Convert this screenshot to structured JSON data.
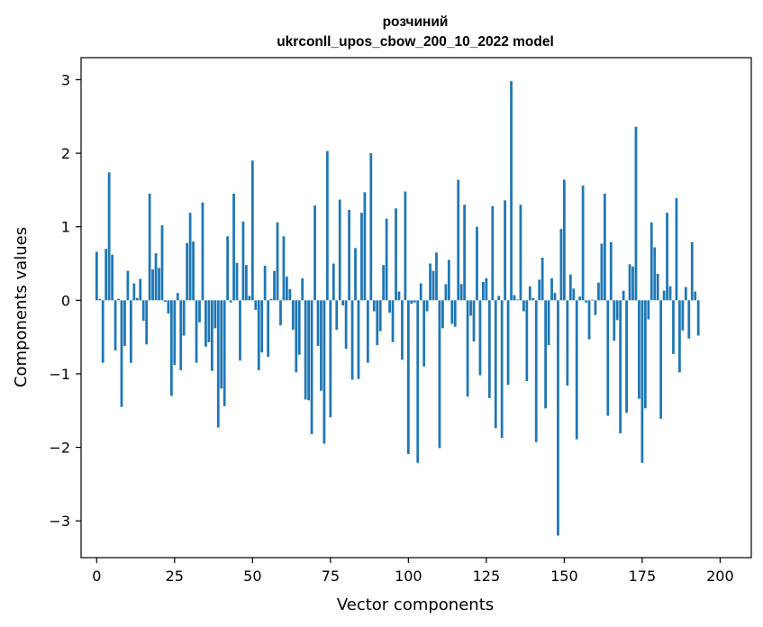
{
  "chart_data": {
    "type": "bar",
    "title_lines": [
      "розчиний",
      "ukrconll_upos_cbow_200_10_2022 model"
    ],
    "xlabel": "Vector components",
    "ylabel": "Components values",
    "xlim": [
      -5,
      210
    ],
    "ylim": [
      -3.5,
      3.3
    ],
    "xticks": [
      0,
      25,
      50,
      75,
      100,
      125,
      150,
      175,
      200
    ],
    "yticks": [
      3,
      2,
      1,
      0,
      -1,
      -2,
      -3
    ],
    "ytick_labels": [
      "3",
      "2",
      "1",
      "0",
      "−1",
      "−2",
      "−3"
    ],
    "bar_color": "#1f77b4",
    "values": [
      0.66,
      0.02,
      -0.85,
      0.7,
      1.74,
      0.62,
      -0.68,
      0.02,
      -1.45,
      -0.62,
      0.4,
      -0.85,
      0.23,
      0.03,
      0.29,
      -0.28,
      -0.6,
      1.45,
      0.42,
      0.64,
      0.44,
      1.02,
      -0.02,
      -0.18,
      -1.3,
      -0.88,
      0.1,
      -0.95,
      -0.48,
      0.78,
      1.19,
      0.8,
      -0.85,
      -0.3,
      1.33,
      -0.63,
      -0.57,
      -0.96,
      -0.38,
      -1.73,
      -1.2,
      -1.44,
      0.87,
      -0.03,
      1.45,
      0.51,
      -0.82,
      1.07,
      0.48,
      0.06,
      1.9,
      -0.13,
      -0.95,
      -0.71,
      0.47,
      -0.77,
      0.02,
      0.4,
      1.06,
      -0.34,
      0.87,
      0.32,
      0.15,
      -0.4,
      -0.98,
      -0.74,
      0.3,
      -1.35,
      -1.36,
      -1.82,
      1.29,
      -0.62,
      -1.23,
      -1.95,
      2.03,
      -1.59,
      0.5,
      -0.4,
      1.37,
      -0.07,
      -0.66,
      1.23,
      -1.08,
      0.71,
      -1.07,
      1.19,
      1.47,
      -0.85,
      2.0,
      -0.15,
      -0.61,
      -0.42,
      0.48,
      1.11,
      -0.17,
      -0.57,
      1.25,
      0.12,
      -0.81,
      1.48,
      -2.09,
      -0.05,
      -0.03,
      -2.21,
      0.23,
      -0.9,
      -0.15,
      0.5,
      0.4,
      0.65,
      -2.01,
      -0.38,
      0.22,
      0.55,
      -0.32,
      -0.36,
      1.64,
      0.22,
      1.3,
      -1.31,
      -0.21,
      -0.56,
      1.0,
      -1.02,
      0.25,
      0.3,
      -1.33,
      1.28,
      -1.74,
      0.06,
      -1.87,
      1.36,
      -1.15,
      2.98,
      0.07,
      0.01,
      1.3,
      -0.15,
      -1.1,
      0.19,
      0.03,
      -1.93,
      0.28,
      0.58,
      -1.47,
      -0.61,
      0.3,
      0.1,
      -3.2,
      0.97,
      1.64,
      -1.16,
      0.35,
      0.16,
      -1.89,
      0.05,
      1.56,
      -0.03,
      -0.53,
      0.01,
      -0.2,
      0.24,
      0.77,
      1.45,
      -1.57,
      0.79,
      -0.55,
      -0.27,
      -1.81,
      0.13,
      -1.53,
      0.49,
      0.46,
      2.36,
      -1.34,
      -2.21,
      -1.47,
      -0.26,
      1.06,
      0.72,
      0.36,
      -1.61,
      0.13,
      1.19,
      0.19,
      -0.73,
      1.39,
      -0.98,
      -0.41,
      0.18,
      -0.52,
      0.79,
      0.12,
      -0.48
    ]
  }
}
